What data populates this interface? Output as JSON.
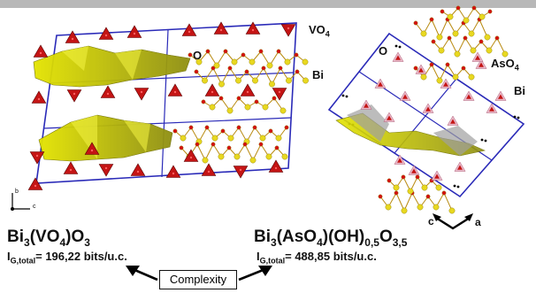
{
  "left_structure": {
    "formula": {
      "main": "Bi",
      "sub1": "3",
      "mid": "(VO",
      "sub2": "4",
      "tail": ")O",
      "sub3": "3"
    },
    "info": {
      "prefix": "I",
      "sub": "G,total",
      "value": "= 196,22 bits/u.c."
    },
    "labels": {
      "polyhedron": "VO",
      "polyhedron_sub": "4",
      "oxygen": "O",
      "bismuth": "Bi"
    },
    "axes": {
      "b": "b",
      "c": "c"
    }
  },
  "right_structure": {
    "formula": {
      "main": "Bi",
      "sub1": "3",
      "mid": "(AsO",
      "sub2": "4",
      "mid2": ")(OH)",
      "sub3": "0,5",
      "tail": "O",
      "sub4": "3,5"
    },
    "info": {
      "prefix": "I",
      "sub": "G,total",
      "value": "= 488,85 bits/u.c."
    },
    "labels": {
      "polyhedron": "AsO",
      "polyhedron_sub": "4",
      "oxygen": "O",
      "bismuth": "Bi"
    },
    "axes": {
      "c": "c",
      "a": "a"
    }
  },
  "center": {
    "complexity_label": "Complexity"
  },
  "colors": {
    "tetrahedron": "#c41414",
    "polyhedron": "#d6d62a",
    "atom": "#e8d820",
    "cell": "#2a2ab8",
    "bond": "#b88a10"
  }
}
